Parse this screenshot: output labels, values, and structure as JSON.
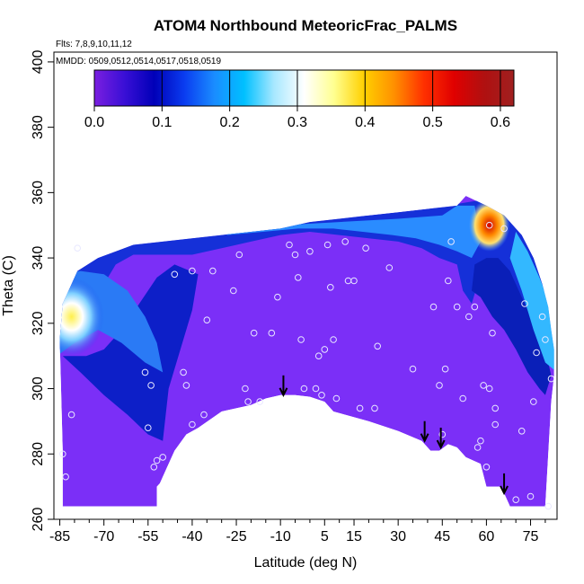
{
  "chart_data": {
    "type": "heatmap",
    "title": "ATOM4 Northbound MeteoricFrac_PALMS",
    "flights_label": "Flts: 7,8,9,10,11,12",
    "dates_label": "MMDD: 0509,0512,0514,0517,0518,0519",
    "xlabel": "Latitude (deg N)",
    "ylabel": "Theta (C)",
    "xlim": [
      -87,
      84
    ],
    "ylim": [
      260,
      403
    ],
    "x_ticks": [
      -85,
      -70,
      -55,
      -40,
      -25,
      -10,
      5,
      15,
      30,
      45,
      60,
      75
    ],
    "x_minor_ticks": [
      -80,
      -75,
      -65,
      -60,
      -50,
      -45,
      -35,
      -30,
      -20,
      -15,
      -5,
      0,
      10,
      20,
      25,
      35,
      40,
      50,
      55,
      65,
      70,
      80
    ],
    "y_ticks": [
      260,
      280,
      300,
      320,
      340,
      360,
      380,
      400
    ],
    "colorbar": {
      "range": [
        0.0,
        0.62
      ],
      "ticks": [
        0.0,
        0.1,
        0.2,
        0.3,
        0.4,
        0.5,
        0.6
      ],
      "tick_labels": [
        "0.0",
        "0.1",
        "0.2",
        "0.3",
        "0.4",
        "0.5",
        "0.6"
      ],
      "colors": [
        "#7a1fe0",
        "#3a0fd6",
        "#0000b8",
        "#0a3cf0",
        "#1a8cff",
        "#00c0ff",
        "#a8e8ff",
        "#ffffff",
        "#ffff90",
        "#ffd000",
        "#ff9000",
        "#ff3000",
        "#e00000",
        "#b01010",
        "#a02020"
      ]
    },
    "background_color": "#7b2ff7",
    "regions": [
      {
        "name": "southern-upper",
        "color": "#1a2ad8",
        "value": 0.1
      },
      {
        "name": "southern-high-lat-max",
        "color": "#ffe45a",
        "value": 0.4,
        "lat": -82,
        "theta": 322
      },
      {
        "name": "midlat-band",
        "color": "#0a64ff",
        "value": 0.17
      },
      {
        "name": "northern-high-lat-max",
        "color": "#e00000",
        "value": 0.57,
        "lat": 62,
        "theta": 350
      }
    ],
    "arrows": [
      {
        "lat": -9,
        "theta": 298
      },
      {
        "lat": 39,
        "theta": 284
      },
      {
        "lat": 44.5,
        "theta": 282
      },
      {
        "lat": 66,
        "theta": 268
      }
    ],
    "sample_points": [
      {
        "x": -84,
        "y": 280
      },
      {
        "x": -83,
        "y": 273
      },
      {
        "x": -81,
        "y": 292
      },
      {
        "x": -79,
        "y": 343
      },
      {
        "x": -56,
        "y": 305
      },
      {
        "x": -55,
        "y": 288
      },
      {
        "x": -54,
        "y": 301
      },
      {
        "x": -53,
        "y": 276
      },
      {
        "x": -50,
        "y": 279
      },
      {
        "x": -52,
        "y": 278
      },
      {
        "x": -46,
        "y": 335
      },
      {
        "x": -43,
        "y": 305
      },
      {
        "x": -42,
        "y": 301
      },
      {
        "x": -40,
        "y": 336
      },
      {
        "x": -40,
        "y": 289
      },
      {
        "x": -36,
        "y": 292
      },
      {
        "x": -35,
        "y": 321
      },
      {
        "x": -33,
        "y": 336
      },
      {
        "x": -26,
        "y": 330
      },
      {
        "x": -24,
        "y": 341
      },
      {
        "x": -22,
        "y": 300
      },
      {
        "x": -21,
        "y": 296
      },
      {
        "x": -19,
        "y": 317
      },
      {
        "x": -17,
        "y": 296
      },
      {
        "x": -13,
        "y": 317
      },
      {
        "x": -11,
        "y": 328
      },
      {
        "x": -7,
        "y": 344
      },
      {
        "x": -5,
        "y": 341
      },
      {
        "x": -4,
        "y": 334
      },
      {
        "x": -3,
        "y": 315
      },
      {
        "x": -2,
        "y": 300
      },
      {
        "x": 0,
        "y": 342
      },
      {
        "x": 2,
        "y": 300
      },
      {
        "x": 3,
        "y": 310
      },
      {
        "x": 4,
        "y": 298
      },
      {
        "x": 5,
        "y": 312
      },
      {
        "x": 6,
        "y": 344
      },
      {
        "x": 7,
        "y": 331
      },
      {
        "x": 8,
        "y": 315
      },
      {
        "x": 9,
        "y": 297
      },
      {
        "x": 12,
        "y": 345
      },
      {
        "x": 13,
        "y": 333
      },
      {
        "x": 15,
        "y": 333
      },
      {
        "x": 17,
        "y": 294
      },
      {
        "x": 19,
        "y": 343
      },
      {
        "x": 22,
        "y": 294
      },
      {
        "x": 23,
        "y": 313
      },
      {
        "x": 27,
        "y": 337
      },
      {
        "x": 35,
        "y": 306
      },
      {
        "x": 42,
        "y": 325
      },
      {
        "x": 44,
        "y": 301
      },
      {
        "x": 45,
        "y": 286
      },
      {
        "x": 46,
        "y": 306
      },
      {
        "x": 47,
        "y": 333
      },
      {
        "x": 48,
        "y": 345
      },
      {
        "x": 50,
        "y": 325
      },
      {
        "x": 52,
        "y": 297
      },
      {
        "x": 54,
        "y": 322
      },
      {
        "x": 56,
        "y": 325
      },
      {
        "x": 57,
        "y": 282
      },
      {
        "x": 58,
        "y": 284
      },
      {
        "x": 59,
        "y": 301
      },
      {
        "x": 60,
        "y": 276
      },
      {
        "x": 61,
        "y": 300
      },
      {
        "x": 62,
        "y": 317
      },
      {
        "x": 63,
        "y": 289
      },
      {
        "x": 63,
        "y": 294
      },
      {
        "x": 61,
        "y": 350
      },
      {
        "x": 66,
        "y": 349
      },
      {
        "x": 70,
        "y": 266
      },
      {
        "x": 72,
        "y": 287
      },
      {
        "x": 73,
        "y": 326
      },
      {
        "x": 75,
        "y": 267
      },
      {
        "x": 76,
        "y": 296
      },
      {
        "x": 77,
        "y": 311
      },
      {
        "x": 79,
        "y": 322
      },
      {
        "x": 80,
        "y": 315
      },
      {
        "x": 81,
        "y": 264
      },
      {
        "x": 82,
        "y": 303
      }
    ]
  }
}
